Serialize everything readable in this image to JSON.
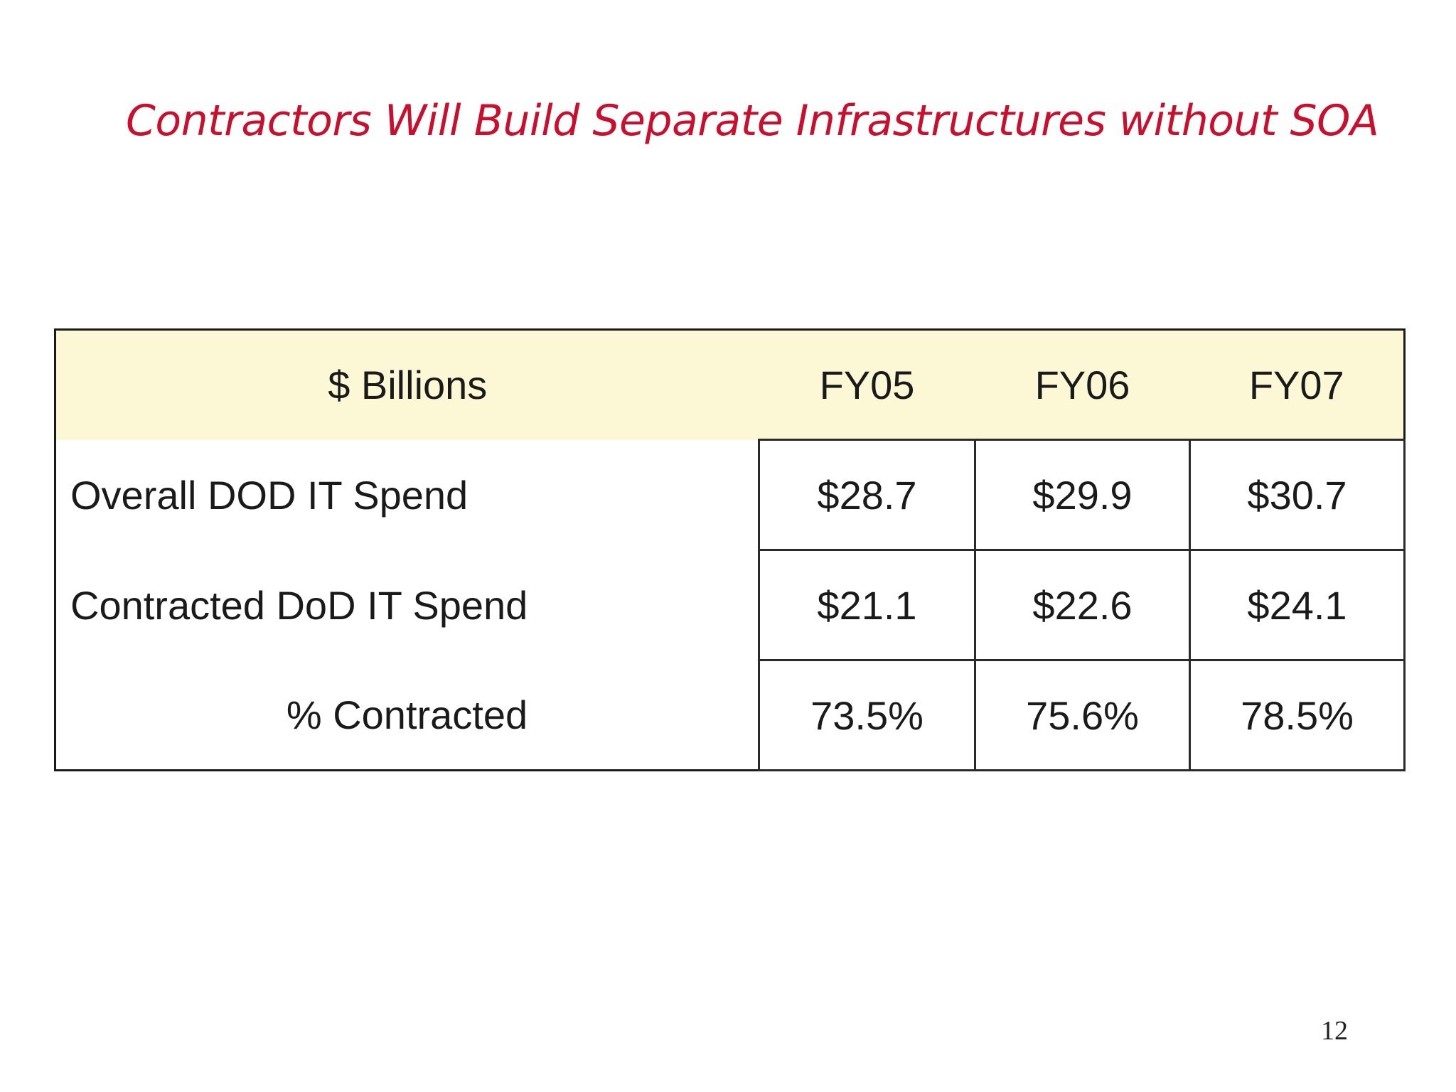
{
  "slide": {
    "title": "Contractors Will Build Separate Infrastructures without SOA",
    "page_number": "12"
  },
  "table": {
    "header": [
      "$ Billions",
      "FY05",
      "FY06",
      "FY07"
    ],
    "rows": [
      {
        "label": "Overall DOD IT Spend",
        "values": [
          "$28.7",
          "$29.9",
          "$30.7"
        ]
      },
      {
        "label": "Contracted DoD IT Spend",
        "values": [
          "$21.1",
          "$22.6",
          "$24.1"
        ]
      },
      {
        "label": "% Contracted",
        "values": [
          "73.5%",
          "75.6%",
          "78.5%"
        ]
      }
    ]
  },
  "colors": {
    "title": "#c8102e",
    "header_background": "#fcf8d6",
    "text": "#1a1a1a"
  }
}
